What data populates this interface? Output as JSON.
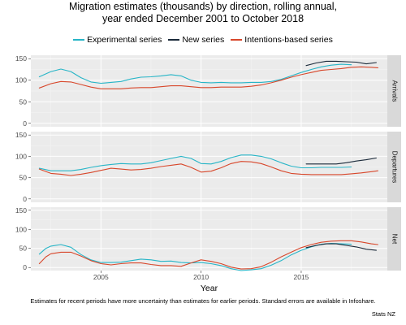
{
  "title_line1": "Migration estimates (thousands) by direction, rolling annual,",
  "title_line2": "year ended December 2001 to October 2018",
  "caption": "Estimates for recent periods have more uncertainty than estimates for earlier periods. Standard errors are available in Infoshare.",
  "source": "Stats NZ",
  "chart_data": {
    "type": "line",
    "title": "Migration estimates (thousands) by direction, rolling annual, year ended December 2001 to October 2018",
    "xlabel": "Year",
    "ylabel": "",
    "xlim": [
      2001.5,
      2019.3
    ],
    "ylim": [
      -8,
      158
    ],
    "x_ticks": [
      2005,
      2010,
      2015
    ],
    "y_ticks": [
      0,
      50,
      100,
      150
    ],
    "grid": true,
    "legend_position": "top",
    "series_legend": [
      {
        "name": "Experimental series",
        "color": "#27b5c7"
      },
      {
        "name": "New series",
        "color": "#1b2a3a"
      },
      {
        "name": "Intentions-based series",
        "color": "#d8472b"
      }
    ],
    "panels": [
      {
        "label": "Arrivals",
        "series": [
          {
            "name": "Experimental series",
            "x": [
              2001.92,
              2002.5,
              2003.0,
              2003.5,
              2004.0,
              2004.5,
              2005.0,
              2005.5,
              2006.0,
              2006.5,
              2007.0,
              2007.5,
              2008.0,
              2008.5,
              2009.0,
              2009.5,
              2010.0,
              2010.5,
              2011.0,
              2011.5,
              2012.0,
              2012.5,
              2013.0,
              2013.5,
              2014.0,
              2014.5,
              2015.0,
              2015.5,
              2016.0,
              2016.5,
              2017.0,
              2017.5
            ],
            "values": [
              108,
              120,
              126,
              120,
              106,
              96,
              93,
              95,
              97,
              103,
              107,
              108,
              110,
              113,
              110,
              100,
              95,
              94,
              95,
              94,
              94,
              95,
              95,
              97,
              102,
              110,
              118,
              125,
              131,
              135,
              137,
              136
            ]
          },
          {
            "name": "New series",
            "x": [
              2015.25,
              2015.75,
              2016.25,
              2016.75,
              2017.25,
              2017.75,
              2018.25,
              2018.75
            ],
            "values": [
              134,
              140,
              144,
              144,
              143,
              142,
              138,
              141
            ]
          },
          {
            "name": "Intentions-based series",
            "x": [
              2001.92,
              2002.5,
              2003.0,
              2003.5,
              2004.0,
              2004.5,
              2005.0,
              2005.5,
              2006.0,
              2006.5,
              2007.0,
              2007.5,
              2008.0,
              2008.5,
              2009.0,
              2009.5,
              2010.0,
              2010.5,
              2011.0,
              2011.5,
              2012.0,
              2012.5,
              2013.0,
              2013.5,
              2014.0,
              2014.5,
              2015.0,
              2015.5,
              2016.0,
              2016.5,
              2017.0,
              2017.5,
              2018.0,
              2018.5,
              2018.83
            ],
            "values": [
              82,
              92,
              97,
              96,
              90,
              84,
              80,
              80,
              80,
              82,
              83,
              83,
              85,
              87,
              87,
              85,
              83,
              83,
              84,
              84,
              84,
              86,
              89,
              94,
              100,
              107,
              113,
              118,
              123,
              125,
              127,
              130,
              131,
              130,
              129
            ]
          }
        ]
      },
      {
        "label": "Departures",
        "series": [
          {
            "name": "Experimental series",
            "x": [
              2001.92,
              2002.5,
              2003.0,
              2003.5,
              2004.0,
              2004.5,
              2005.0,
              2005.5,
              2006.0,
              2006.5,
              2007.0,
              2007.5,
              2008.0,
              2008.5,
              2009.0,
              2009.5,
              2010.0,
              2010.5,
              2011.0,
              2011.5,
              2012.0,
              2012.5,
              2013.0,
              2013.5,
              2014.0,
              2014.5,
              2015.0,
              2015.5,
              2016.0,
              2016.5,
              2017.0,
              2017.5
            ],
            "values": [
              72,
              66,
              66,
              66,
              69,
              74,
              78,
              81,
              83,
              82,
              82,
              85,
              90,
              95,
              100,
              95,
              83,
              82,
              88,
              97,
              103,
              103,
              100,
              94,
              85,
              77,
              73,
              73,
              74,
              74,
              74,
              75
            ]
          },
          {
            "name": "New series",
            "x": [
              2015.25,
              2015.75,
              2016.25,
              2016.75,
              2017.25,
              2017.75,
              2018.25,
              2018.75
            ],
            "values": [
              82,
              82,
              82,
              82,
              85,
              89,
              92,
              96
            ]
          },
          {
            "name": "Intentions-based series",
            "x": [
              2001.92,
              2002.5,
              2003.0,
              2003.5,
              2004.0,
              2004.5,
              2005.0,
              2005.5,
              2006.0,
              2006.5,
              2007.0,
              2007.5,
              2008.0,
              2008.5,
              2009.0,
              2009.5,
              2010.0,
              2010.5,
              2011.0,
              2011.5,
              2012.0,
              2012.5,
              2013.0,
              2013.5,
              2014.0,
              2014.5,
              2015.0,
              2015.5,
              2016.0,
              2016.5,
              2017.0,
              2017.5,
              2018.0,
              2018.5,
              2018.83
            ],
            "values": [
              70,
              60,
              58,
              55,
              58,
              62,
              67,
              72,
              70,
              68,
              69,
              72,
              76,
              79,
              82,
              74,
              63,
              65,
              73,
              83,
              88,
              87,
              83,
              75,
              66,
              60,
              58,
              57,
              57,
              57,
              57,
              59,
              61,
              64,
              66
            ]
          }
        ]
      },
      {
        "label": "Net",
        "series": [
          {
            "name": "Experimental series",
            "x": [
              2001.92,
              2002.25,
              2002.5,
              2003.0,
              2003.5,
              2004.0,
              2004.5,
              2005.0,
              2005.5,
              2006.0,
              2006.5,
              2007.0,
              2007.5,
              2008.0,
              2008.5,
              2009.0,
              2009.5,
              2010.0,
              2010.5,
              2011.0,
              2011.5,
              2012.0,
              2012.5,
              2013.0,
              2013.5,
              2014.0,
              2014.5,
              2015.0,
              2015.5,
              2016.0,
              2016.5,
              2017.0,
              2017.5
            ],
            "values": [
              35,
              50,
              56,
              60,
              53,
              34,
              20,
              13,
              13,
              14,
              18,
              22,
              20,
              16,
              17,
              13,
              12,
              13,
              10,
              5,
              -3,
              -8,
              -6,
              -3,
              6,
              18,
              33,
              45,
              54,
              61,
              63,
              62,
              61
            ]
          },
          {
            "name": "New series",
            "x": [
              2015.25,
              2015.75,
              2016.25,
              2016.75,
              2017.25,
              2017.75,
              2018.25,
              2018.75
            ],
            "values": [
              52,
              58,
              62,
              62,
              58,
              54,
              48,
              45
            ]
          },
          {
            "name": "Intentions-based series",
            "x": [
              2001.92,
              2002.25,
              2002.5,
              2003.0,
              2003.5,
              2004.0,
              2004.5,
              2005.0,
              2005.5,
              2006.0,
              2006.5,
              2007.0,
              2007.5,
              2008.0,
              2008.5,
              2009.0,
              2009.5,
              2010.0,
              2010.5,
              2011.0,
              2011.5,
              2012.0,
              2012.5,
              2013.0,
              2013.5,
              2014.0,
              2014.5,
              2015.0,
              2015.5,
              2016.0,
              2016.5,
              2017.0,
              2017.5,
              2018.0,
              2018.5,
              2018.83
            ],
            "values": [
              10,
              28,
              36,
              40,
              40,
              30,
              18,
              10,
              7,
              10,
              12,
              12,
              8,
              5,
              5,
              3,
              12,
              20,
              16,
              10,
              1,
              -4,
              -3,
              2,
              14,
              28,
              40,
              52,
              60,
              66,
              69,
              70,
              70,
              67,
              62,
              60
            ]
          }
        ]
      }
    ]
  }
}
